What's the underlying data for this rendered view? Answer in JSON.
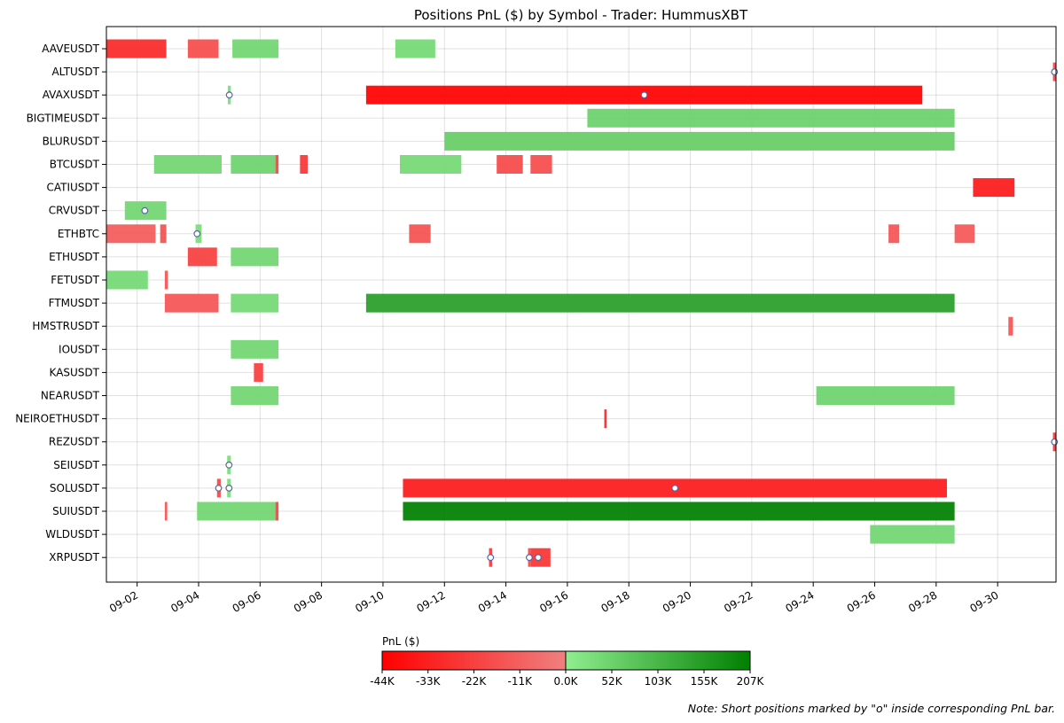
{
  "chart_data": {
    "type": "gantt",
    "title": "Positions PnL ($) by Symbol - Trader: HummusXBT",
    "grid": true,
    "x_axis": {
      "type": "date",
      "range": [
        "2024-08-31",
        "2024-09-30.9"
      ],
      "ticks": [
        "09-02",
        "09-04",
        "09-06",
        "09-08",
        "09-10",
        "09-12",
        "09-14",
        "09-16",
        "09-18",
        "09-20",
        "09-22",
        "09-24",
        "09-26",
        "09-28",
        "09-30"
      ]
    },
    "symbols": [
      "AAVEUSDT",
      "ALTUSDT",
      "AVAXUSDT",
      "BIGTIMEUSDT",
      "BLURUSDT",
      "BTCUSDT",
      "CATIUSDT",
      "CRVUSDT",
      "ETHBTC",
      "ETHUSDT",
      "FETUSDT",
      "FTMUSDT",
      "HMSTRUSDT",
      "IOUSDT",
      "KASUSDT",
      "NEARUSDT",
      "NEIROETHUSDT",
      "REZUSDT",
      "SEIUSDT",
      "SOLUSDT",
      "SUIUSDT",
      "WLDUSDT",
      "XRPUSDT"
    ],
    "positions": [
      {
        "symbol": "AAVEUSDT",
        "start": 0.0,
        "end": 1.95,
        "pnl": -30000
      },
      {
        "symbol": "AAVEUSDT",
        "start": 2.65,
        "end": 3.65,
        "pnl": -18000
      },
      {
        "symbol": "AAVEUSDT",
        "start": 4.1,
        "end": 5.6,
        "pnl": 45000
      },
      {
        "symbol": "AAVEUSDT",
        "start": 9.4,
        "end": 10.7,
        "pnl": 40000
      },
      {
        "symbol": "ALTUSDT",
        "start": 30.8,
        "end": 30.9,
        "pnl": -20000,
        "short": true
      },
      {
        "symbol": "AVAXUSDT",
        "start": 3.95,
        "end": 4.05,
        "pnl": 30000,
        "short": true
      },
      {
        "symbol": "AVAXUSDT",
        "start": 8.45,
        "end": 26.55,
        "pnl": -44000,
        "short": true
      },
      {
        "symbol": "BIGTIMEUSDT",
        "start": 15.65,
        "end": 27.6,
        "pnl": 55000
      },
      {
        "symbol": "BLURUSDT",
        "start": 11.0,
        "end": 27.6,
        "pnl": 60000
      },
      {
        "symbol": "BTCUSDT",
        "start": 1.55,
        "end": 3.75,
        "pnl": 45000
      },
      {
        "symbol": "BTCUSDT",
        "start": 4.05,
        "end": 5.5,
        "pnl": 50000
      },
      {
        "symbol": "BTCUSDT",
        "start": 5.5,
        "end": 5.6,
        "pnl": -20000
      },
      {
        "symbol": "BTCUSDT",
        "start": 6.3,
        "end": 6.55,
        "pnl": -25000
      },
      {
        "symbol": "BTCUSDT",
        "start": 9.55,
        "end": 11.55,
        "pnl": 40000
      },
      {
        "symbol": "BTCUSDT",
        "start": 12.7,
        "end": 13.55,
        "pnl": -19000
      },
      {
        "symbol": "BTCUSDT",
        "start": 13.8,
        "end": 14.5,
        "pnl": -18000
      },
      {
        "symbol": "CATIUSDT",
        "start": 28.2,
        "end": 29.55,
        "pnl": -35000
      },
      {
        "symbol": "CRVUSDT",
        "start": 0.6,
        "end": 1.95,
        "pnl": 45000,
        "short": true,
        "marker": 1.25
      },
      {
        "symbol": "ETHBTC",
        "start": 0.0,
        "end": 1.6,
        "pnl": -13000
      },
      {
        "symbol": "ETHBTC",
        "start": 1.75,
        "end": 1.95,
        "pnl": -16000
      },
      {
        "symbol": "ETHBTC",
        "start": 2.9,
        "end": 3.1,
        "pnl": 30000,
        "short": true,
        "marker": 2.95
      },
      {
        "symbol": "ETHBTC",
        "start": 9.85,
        "end": 10.55,
        "pnl": -16000
      },
      {
        "symbol": "ETHBTC",
        "start": 25.45,
        "end": 25.8,
        "pnl": -15000
      },
      {
        "symbol": "ETHBTC",
        "start": 27.6,
        "end": 28.25,
        "pnl": -14000
      },
      {
        "symbol": "ETHUSDT",
        "start": 2.65,
        "end": 3.6,
        "pnl": -22000
      },
      {
        "symbol": "ETHUSDT",
        "start": 4.05,
        "end": 5.6,
        "pnl": 45000
      },
      {
        "symbol": "FETUSDT",
        "start": 0.0,
        "end": 1.35,
        "pnl": 40000
      },
      {
        "symbol": "FETUSDT",
        "start": 1.9,
        "end": 2.0,
        "pnl": -15000
      },
      {
        "symbol": "FTMUSDT",
        "start": 1.9,
        "end": 3.65,
        "pnl": -15000
      },
      {
        "symbol": "FTMUSDT",
        "start": 4.05,
        "end": 5.6,
        "pnl": 40000
      },
      {
        "symbol": "FTMUSDT",
        "start": 8.45,
        "end": 27.6,
        "pnl": 150000
      },
      {
        "symbol": "HMSTRUSDT",
        "start": 29.35,
        "end": 29.5,
        "pnl": -15000
      },
      {
        "symbol": "IOUSDT",
        "start": 4.05,
        "end": 5.6,
        "pnl": 45000
      },
      {
        "symbol": "KASUSDT",
        "start": 4.8,
        "end": 5.1,
        "pnl": -22000
      },
      {
        "symbol": "NEARUSDT",
        "start": 4.05,
        "end": 5.6,
        "pnl": 45000
      },
      {
        "symbol": "NEARUSDT",
        "start": 23.1,
        "end": 27.6,
        "pnl": 50000
      },
      {
        "symbol": "NEIROETHUSDT",
        "start": 16.2,
        "end": 16.28,
        "pnl": -30000
      },
      {
        "symbol": "REZUSDT",
        "start": 30.8,
        "end": 30.9,
        "pnl": -25000,
        "short": true
      },
      {
        "symbol": "SEIUSDT",
        "start": 3.93,
        "end": 4.05,
        "pnl": 30000,
        "short": true
      },
      {
        "symbol": "SOLUSDT",
        "start": 3.6,
        "end": 3.72,
        "pnl": -20000,
        "short": true,
        "marker": 3.65
      },
      {
        "symbol": "SOLUSDT",
        "start": 3.93,
        "end": 4.05,
        "pnl": 30000,
        "short": true,
        "marker": 3.99
      },
      {
        "symbol": "SOLUSDT",
        "start": 9.65,
        "end": 27.35,
        "pnl": -35000,
        "short": true,
        "marker": 18.5
      },
      {
        "symbol": "SUIUSDT",
        "start": 1.9,
        "end": 1.98,
        "pnl": -15000
      },
      {
        "symbol": "SUIUSDT",
        "start": 2.95,
        "end": 5.5,
        "pnl": 45000
      },
      {
        "symbol": "SUIUSDT",
        "start": 5.5,
        "end": 5.6,
        "pnl": -20000
      },
      {
        "symbol": "SUIUSDT",
        "start": 9.65,
        "end": 27.6,
        "pnl": 207000
      },
      {
        "symbol": "WLDUSDT",
        "start": 24.85,
        "end": 27.6,
        "pnl": 45000
      },
      {
        "symbol": "XRPUSDT",
        "start": 12.45,
        "end": 12.55,
        "pnl": -25000,
        "short": true,
        "marker": 12.5
      },
      {
        "symbol": "XRPUSDT",
        "start": 13.72,
        "end": 13.8,
        "pnl": -20000,
        "short": true,
        "marker": 13.76
      },
      {
        "symbol": "XRPUSDT",
        "start": 13.8,
        "end": 14.45,
        "pnl": -26000,
        "short": true,
        "marker": 14.05
      }
    ],
    "colorbar": {
      "label": "PnL ($)",
      "min": -44000,
      "zero": 0,
      "max": 207000,
      "negative_ticks": [
        "-44K",
        "-33K",
        "-22K",
        "-11K",
        "0.0K"
      ],
      "positive_ticks": [
        "52K",
        "103K",
        "155K",
        "207K"
      ],
      "colors": {
        "min": "#ff0000",
        "neg_zero": "#f08080",
        "pos_zero": "#90ee90",
        "max": "#008000"
      }
    },
    "note": "Note: Short positions marked by \"o\" inside corresponding PnL bar."
  }
}
